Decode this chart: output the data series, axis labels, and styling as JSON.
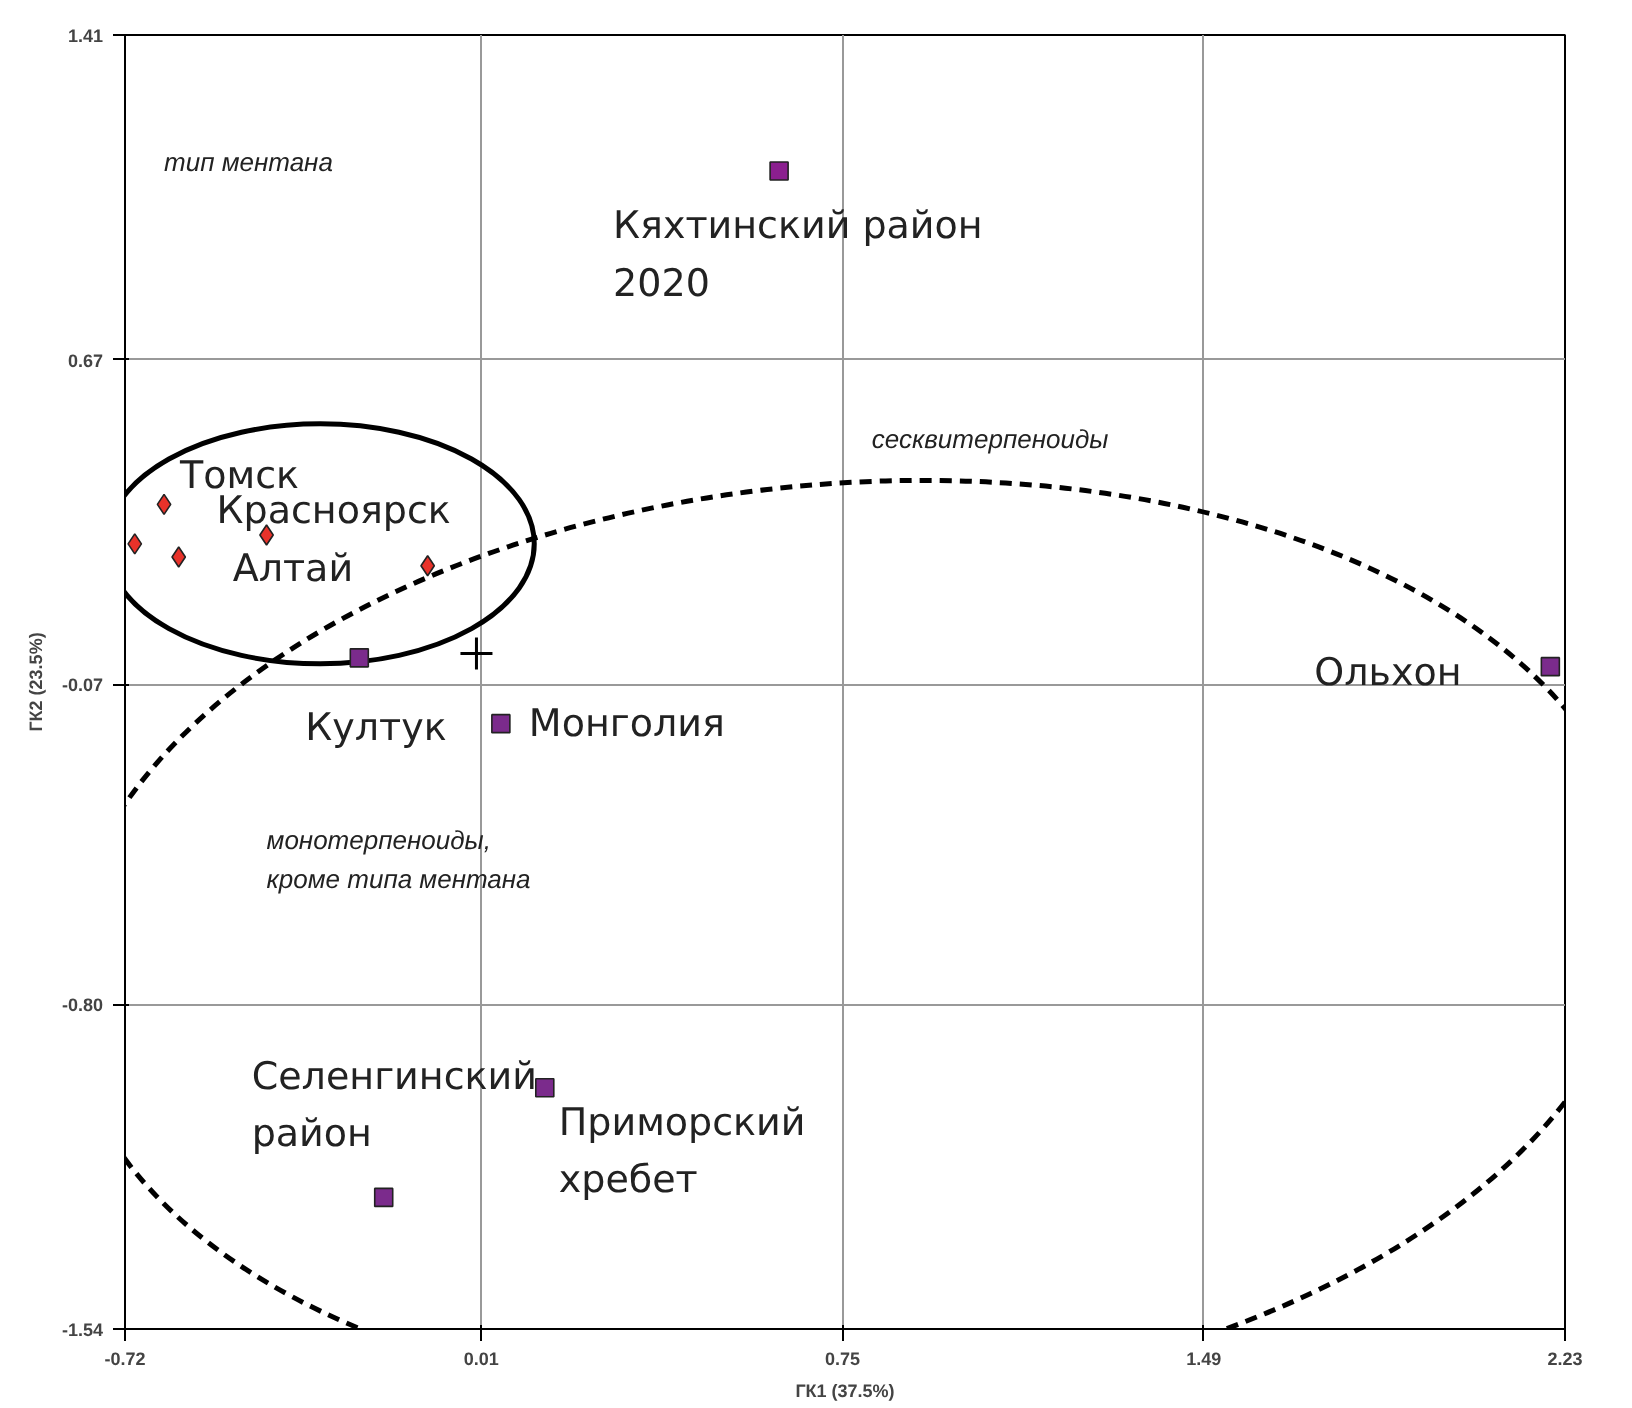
{
  "chart_data": {
    "type": "scatter",
    "xlabel": "ГК1 (37.5%)",
    "ylabel": "ГК2 (23.5%)",
    "xlim": [
      -0.72,
      2.23
    ],
    "xticks": [
      -0.72,
      0.01,
      0.75,
      1.49,
      2.23
    ],
    "ylim": [
      -1.54,
      1.41
    ],
    "yticks": [
      -1.54,
      {
        "value": -0.8,
        "label": "-0.80"
      },
      -0.07,
      0.67,
      1.41
    ],
    "grid": true,
    "series": [
      {
        "color": "#e8322a",
        "marker": "diamond",
        "x": [
          -0.64,
          -0.7,
          -0.61,
          -0.43,
          -0.1
        ],
        "values": [
          0.34,
          0.25,
          0.22,
          0.27,
          0.2
        ]
      },
      {
        "color": "#7b2b8c",
        "marker": "square",
        "x": [
          -0.24,
          0.05,
          2.2,
          0.14,
          -0.19
        ],
        "values": [
          -0.01,
          -0.16,
          -0.03,
          -0.99,
          -1.24
        ]
      },
      {
        "color": "#8b1f8f",
        "marker": "square",
        "x": [
          0.62
        ],
        "values": [
          1.1
        ]
      },
      {
        "color": "#000000",
        "marker": "cross",
        "x": [
          0.0
        ],
        "values": [
          0.0
        ]
      }
    ],
    "annotations": [
      {
        "text": "Кяхтинский район\n2020",
        "x": 0.62,
        "y": 1.1
      },
      {
        "text": "Томск",
        "x": -0.64,
        "y": 0.34
      },
      {
        "text": "Красноярск",
        "x": -0.43,
        "y": 0.27
      },
      {
        "text": "Алтай",
        "x": -0.61,
        "y": 0.22
      },
      {
        "text": "Култук",
        "x": -0.24,
        "y": -0.01
      },
      {
        "text": "Монголия",
        "x": 0.05,
        "y": -0.16
      },
      {
        "text": "Ольхон",
        "x": 2.2,
        "y": -0.03
      },
      {
        "text": "Селенгинский\nрайон",
        "x": -0.19,
        "y": -1.24
      },
      {
        "text": "Приморский\nхребет",
        "x": 0.14,
        "y": -0.99
      },
      "тип ментана",
      "сесквитерпеноиды",
      "монотерпеноиды,\nкроме типа ментана"
    ]
  }
}
